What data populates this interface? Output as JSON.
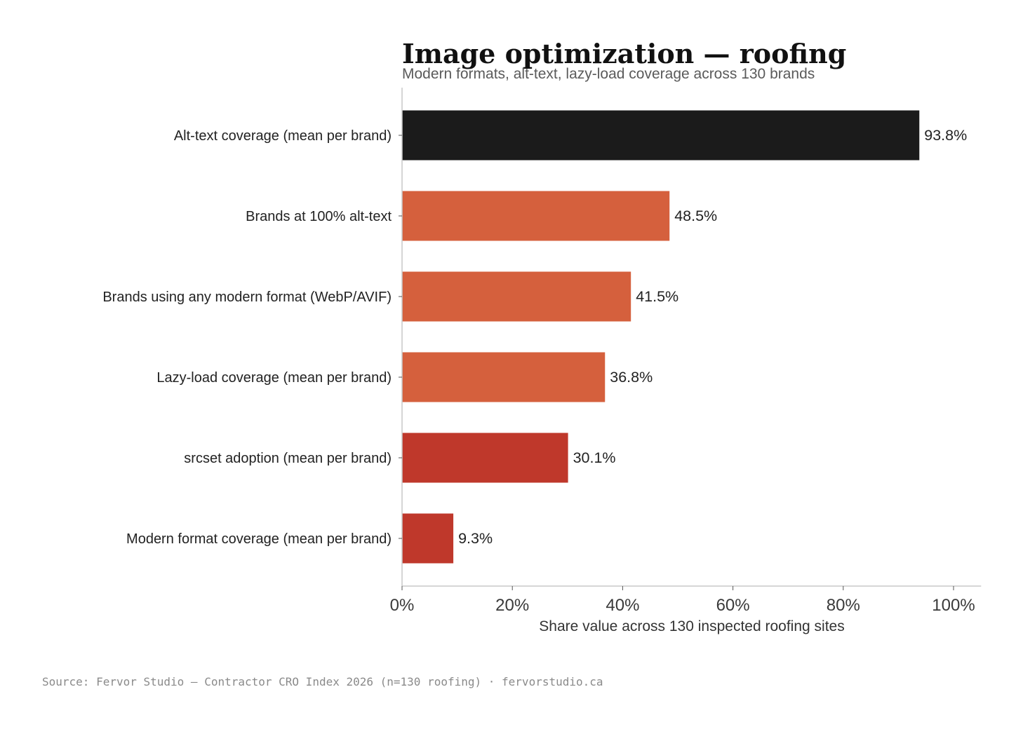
{
  "chart_data": {
    "type": "bar",
    "orientation": "horizontal",
    "title": "Image optimization — roofing",
    "subtitle": "Modern formats, alt-text, lazy-load coverage across 130 brands",
    "xlabel": "Share value across 130 inspected roofing sites",
    "ylabel": "",
    "xlim": [
      0,
      105
    ],
    "xticks": [
      0,
      20,
      40,
      60,
      80,
      100
    ],
    "xtick_labels": [
      "0%",
      "20%",
      "40%",
      "60%",
      "80%",
      "100%"
    ],
    "grid": false,
    "legend": "none",
    "categories": [
      "Alt-text coverage (mean per brand)",
      "Brands at 100% alt-text",
      "Brands using any modern format (WebP/AVIF)",
      "Lazy-load coverage (mean per brand)",
      "srcset adoption (mean per brand)",
      "Modern format coverage (mean per brand)"
    ],
    "values": [
      93.8,
      48.5,
      41.5,
      36.8,
      30.1,
      9.3
    ],
    "value_labels": [
      "93.8%",
      "48.5%",
      "41.5%",
      "36.8%",
      "30.1%",
      "9.3%"
    ],
    "bar_colors": [
      "#1b1b1b",
      "#d5603d",
      "#d5603d",
      "#d5603d",
      "#bf382b",
      "#bf382b"
    ],
    "source": "Source: Fervor Studio — Contractor CRO Index 2026 (n=130 roofing) · fervorstudio.ca"
  }
}
